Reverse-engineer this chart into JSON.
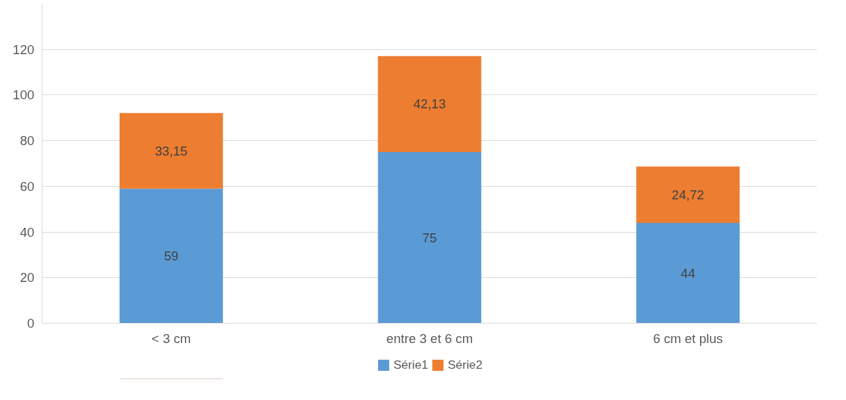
{
  "chart_data": {
    "type": "bar",
    "stacked": true,
    "categories": [
      "< 3 cm",
      "entre 3 et 6 cm",
      "6 cm et plus"
    ],
    "series": [
      {
        "name": "Série1",
        "color": "#5b9bd5",
        "values": [
          59,
          75,
          44
        ],
        "value_labels": [
          "59",
          "75",
          "44"
        ]
      },
      {
        "name": "Série2",
        "color": "#ed7d31",
        "values": [
          33.15,
          42.13,
          24.72
        ],
        "value_labels": [
          "33,15",
          "42,13",
          "24,72"
        ]
      }
    ],
    "ylim": [
      0,
      140
    ],
    "yticks": [
      0,
      20,
      40,
      60,
      80,
      100,
      120
    ],
    "grid": "y",
    "legend": "bottom"
  }
}
